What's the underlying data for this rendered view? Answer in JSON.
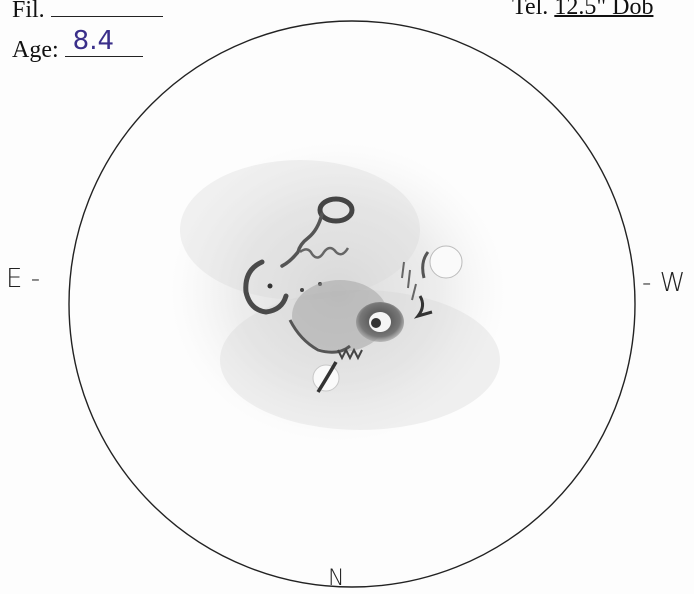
{
  "header": {
    "filter_label": "Fil.",
    "filter_value": "",
    "age_label": "Age:",
    "age_value": "8.4",
    "telescope_label": "Tel.",
    "telescope_value": "12.5\" Dob"
  },
  "compass": {
    "east": "E -",
    "west": "- W",
    "north": "N"
  },
  "colors": {
    "ink": "#222222",
    "handwriting": "#3a2f8a",
    "pencil": "#555555"
  }
}
